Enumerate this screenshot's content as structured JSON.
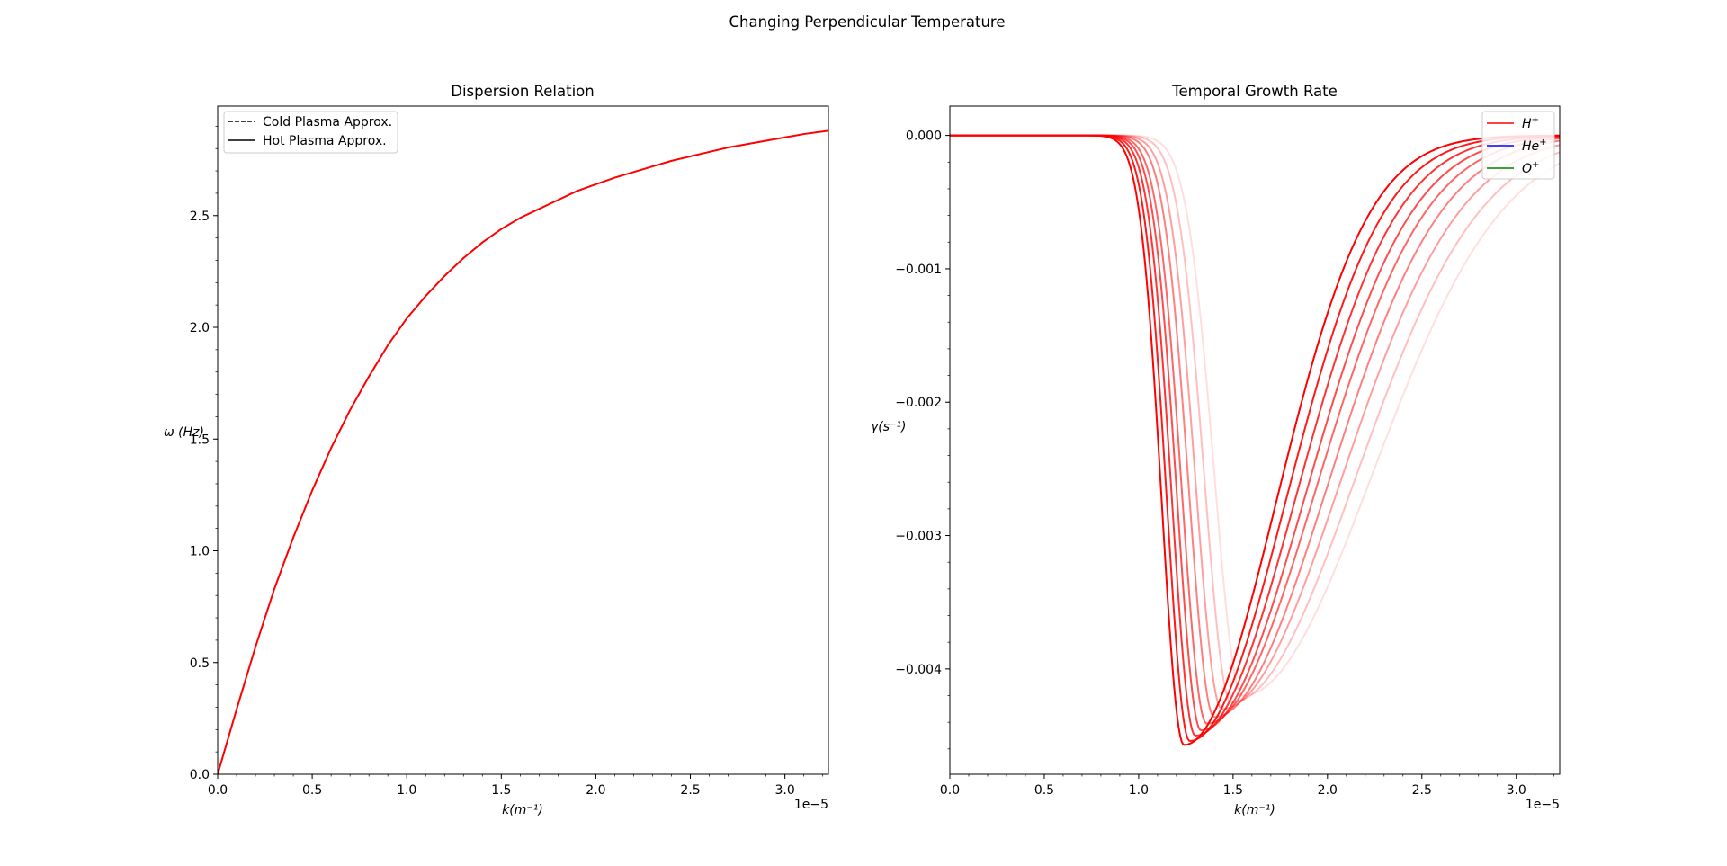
{
  "figure": {
    "suptitle": "Changing Perpendicular Temperature"
  },
  "chart_data": [
    {
      "type": "line",
      "title": "Dispersion Relation",
      "xlabel": "k(m⁻¹)",
      "ylabel": "ω (Hz)",
      "x_offset_text": "1e−5",
      "xlim": [
        0,
        3.23
      ],
      "ylim": [
        0,
        2.99
      ],
      "xticks": [
        0.0,
        0.5,
        1.0,
        1.5,
        2.0,
        2.5,
        3.0
      ],
      "xtick_labels": [
        "0.0",
        "0.5",
        "1.0",
        "1.5",
        "2.0",
        "2.5",
        "3.0"
      ],
      "yticks": [
        0.0,
        0.5,
        1.0,
        1.5,
        2.0,
        2.5
      ],
      "ytick_labels": [
        "0.0",
        "0.5",
        "1.0",
        "1.5",
        "2.0",
        "2.5"
      ],
      "legend": {
        "position": "upper-left",
        "entries": [
          {
            "label": "Cold Plasma Approx.",
            "style": "dashed",
            "color": "#000000"
          },
          {
            "label": "Hot Plasma Approx.",
            "style": "solid",
            "color": "#000000"
          }
        ]
      },
      "series": [
        {
          "color": "#ff0000",
          "x": [
            0,
            0.1,
            0.2,
            0.3,
            0.4,
            0.5,
            0.6,
            0.7,
            0.8,
            0.9,
            1.0,
            1.1,
            1.2,
            1.3,
            1.4,
            1.5,
            1.6,
            1.7,
            1.8,
            1.9,
            2.0,
            2.1,
            2.2,
            2.3,
            2.4,
            2.5,
            2.6,
            2.7,
            2.8,
            2.9,
            3.0,
            3.1,
            3.23
          ],
          "y": [
            0,
            0.29,
            0.57,
            0.83,
            1.06,
            1.27,
            1.46,
            1.63,
            1.78,
            1.92,
            2.04,
            2.14,
            2.23,
            2.31,
            2.38,
            2.44,
            2.49,
            2.53,
            2.57,
            2.61,
            2.64,
            2.67,
            2.695,
            2.72,
            2.745,
            2.765,
            2.785,
            2.805,
            2.82,
            2.835,
            2.85,
            2.865,
            2.88
          ]
        }
      ]
    },
    {
      "type": "line",
      "title": "Temporal Growth Rate",
      "xlabel": "k(m⁻¹)",
      "ylabel": "γ(s⁻¹)",
      "x_offset_text": "1e−5",
      "xlim": [
        0,
        3.23
      ],
      "ylim": [
        -0.00479,
        0.00022
      ],
      "xticks": [
        0.0,
        0.5,
        1.0,
        1.5,
        2.0,
        2.5,
        3.0
      ],
      "xtick_labels": [
        "0.0",
        "0.5",
        "1.0",
        "1.5",
        "2.0",
        "2.5",
        "3.0"
      ],
      "yticks": [
        0.0,
        -0.001,
        -0.002,
        -0.003,
        -0.004
      ],
      "ytick_labels": [
        "0.000",
        "−0.001",
        "−0.002",
        "−0.003",
        "−0.004"
      ],
      "legend": {
        "position": "upper-right",
        "entries": [
          {
            "label": "H",
            "sup": "+",
            "color": "#ff0000"
          },
          {
            "label": "He",
            "sup": "+",
            "color": "#0000ff"
          },
          {
            "label": "O",
            "sup": "+",
            "color": "#008000"
          }
        ]
      },
      "series": [
        {
          "color": "#ff0000",
          "opacity": 1.0,
          "k_min": 1.24,
          "gamma_min": -0.00457,
          "width_left": 0.165,
          "width_right": 0.65,
          "onset": 0.56
        },
        {
          "color": "#ff0000",
          "opacity": 0.9,
          "k_min": 1.27,
          "gamma_min": -0.00454,
          "width_left": 0.17,
          "width_right": 0.68,
          "onset": 0.59
        },
        {
          "color": "#ff0000",
          "opacity": 0.8,
          "k_min": 1.3,
          "gamma_min": -0.0045,
          "width_left": 0.175,
          "width_right": 0.71,
          "onset": 0.62
        },
        {
          "color": "#ff0000",
          "opacity": 0.7,
          "k_min": 1.33,
          "gamma_min": -0.00446,
          "width_left": 0.18,
          "width_right": 0.74,
          "onset": 0.65
        },
        {
          "color": "#ff0000",
          "opacity": 0.6,
          "k_min": 1.36,
          "gamma_min": -0.00441,
          "width_left": 0.185,
          "width_right": 0.77,
          "onset": 0.68
        },
        {
          "color": "#ff0000",
          "opacity": 0.5,
          "k_min": 1.4,
          "gamma_min": -0.00436,
          "width_left": 0.19,
          "width_right": 0.8,
          "onset": 0.72
        },
        {
          "color": "#ff0000",
          "opacity": 0.38,
          "k_min": 1.44,
          "gamma_min": -0.0043,
          "width_left": 0.195,
          "width_right": 0.84,
          "onset": 0.76
        },
        {
          "color": "#ff0000",
          "opacity": 0.25,
          "k_min": 1.49,
          "gamma_min": -0.00425,
          "width_left": 0.2,
          "width_right": 0.88,
          "onset": 0.81
        },
        {
          "color": "#ff0000",
          "opacity": 0.13,
          "k_min": 1.55,
          "gamma_min": -0.0042,
          "width_left": 0.21,
          "width_right": 0.92,
          "onset": 0.86
        }
      ]
    }
  ]
}
